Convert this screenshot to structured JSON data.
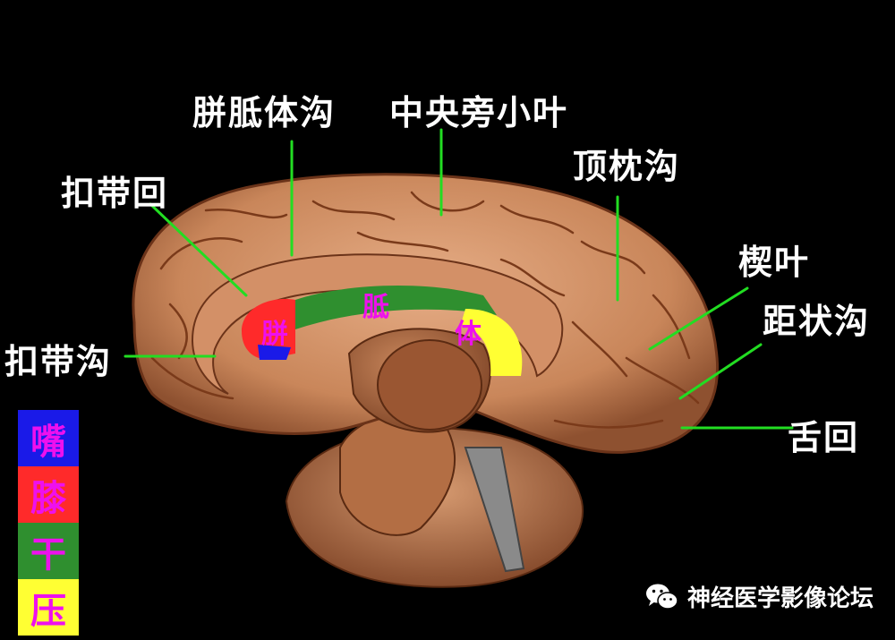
{
  "labels": {
    "callosomarginal_sulcus": "胼胝体沟",
    "paracentral_lobule": "中央旁小叶",
    "parietooccipital_sulcus": "顶枕沟",
    "cingulate_gyrus": "扣带回",
    "cuneus": "楔叶",
    "calcarine_sulcus": "距状沟",
    "cingulate_sulcus": "扣带沟",
    "lingual_gyrus": "舌回"
  },
  "corpus_callosum_text": {
    "c1": "胼",
    "c2": "胝",
    "c3": "体"
  },
  "legend": [
    {
      "label": "嘴",
      "color": "#1a1ae8"
    },
    {
      "label": "膝",
      "color": "#ff2a2a"
    },
    {
      "label": "干",
      "color": "#2f8f2f"
    },
    {
      "label": "压",
      "color": "#ffff33"
    }
  ],
  "colors": {
    "leader_line": "#22dd22",
    "brain_base": "#c9865a",
    "callosum_magenta": "#ee10ee"
  },
  "watermark": {
    "text": "神经医学影像论坛",
    "icon": "wechat-icon"
  }
}
